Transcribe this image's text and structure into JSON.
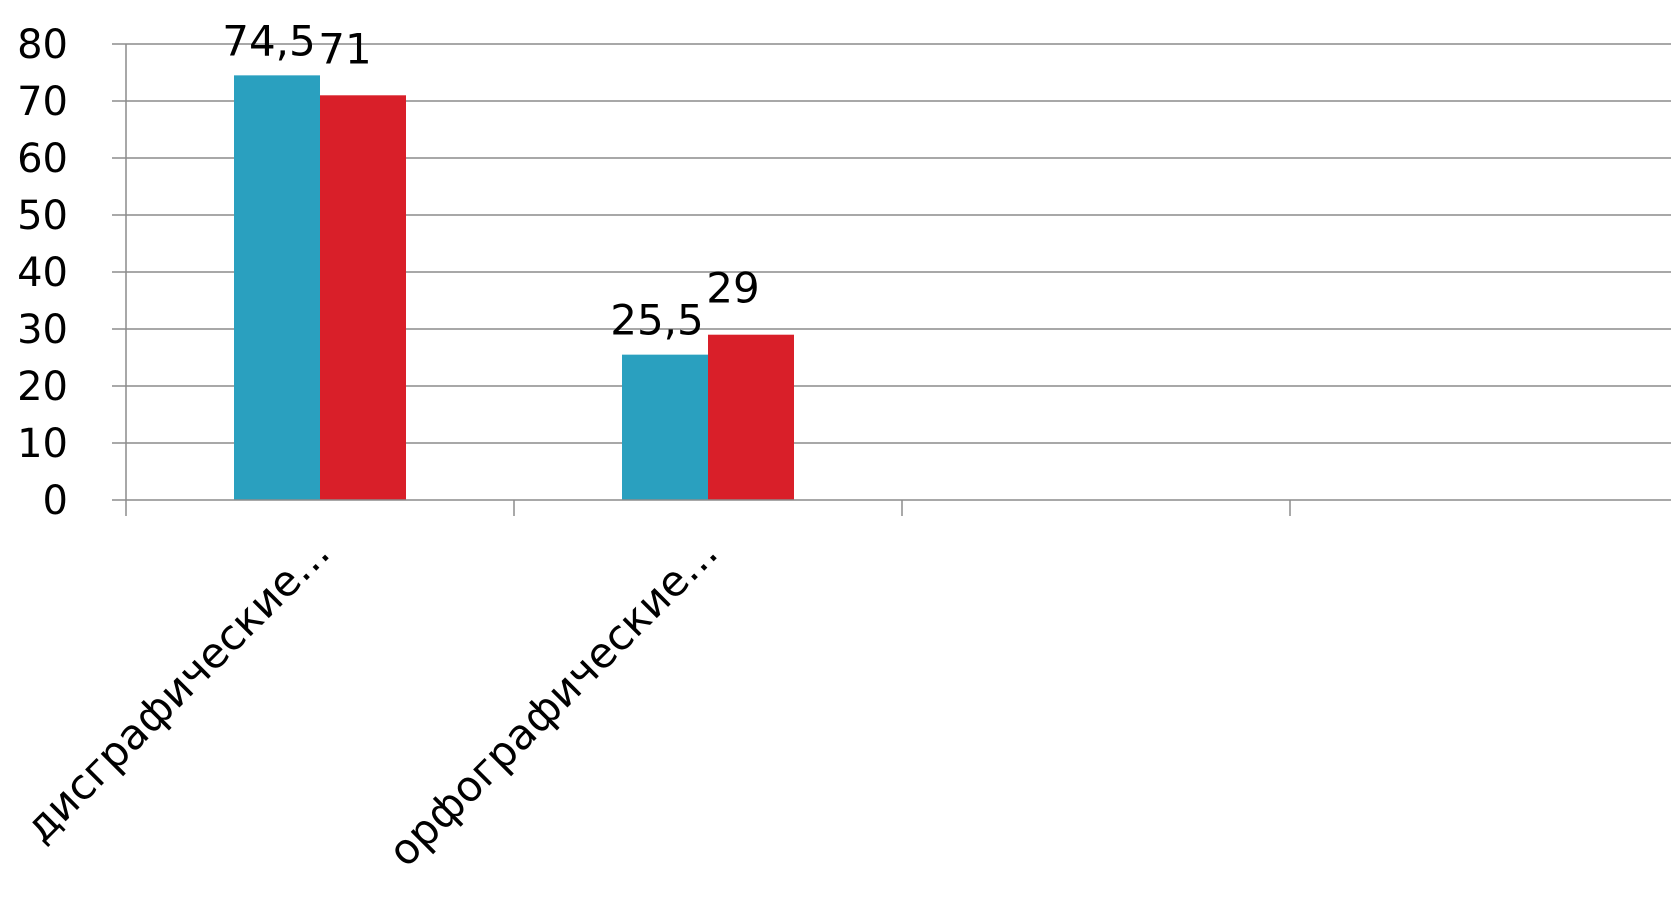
{
  "chart_data": {
    "type": "bar",
    "categories": [
      "дисграфические...",
      "орфографические...",
      "",
      ""
    ],
    "series": [
      {
        "color": "#2aa0bf",
        "values": [
          74.5,
          25.5,
          null,
          null
        ],
        "labels": [
          "74,5",
          "25,5",
          "",
          ""
        ]
      },
      {
        "color": "#d91f29",
        "values": [
          71,
          29,
          null,
          null
        ],
        "labels": [
          "71",
          "29",
          "",
          ""
        ]
      }
    ],
    "ylim": [
      0,
      80
    ],
    "yticks": [
      0,
      10,
      20,
      30,
      40,
      50,
      60,
      70,
      80
    ],
    "ytick_labels": [
      "0",
      "10",
      "20",
      "30",
      "40",
      "50",
      "60",
      "70",
      "80"
    ],
    "grid": true,
    "legend": "none",
    "colors": {
      "grid": "#8c8c8c",
      "text": "#000000"
    }
  }
}
